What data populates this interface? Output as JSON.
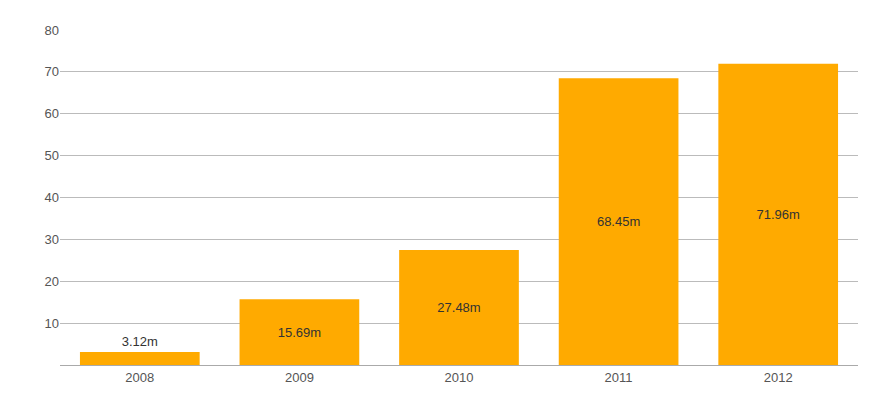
{
  "chart_data": {
    "type": "bar",
    "categories": [
      "2008",
      "2009",
      "2010",
      "2011",
      "2012"
    ],
    "values": [
      3.12,
      15.69,
      27.48,
      68.45,
      71.96
    ],
    "value_labels": [
      "3.12m",
      "15.69m",
      "27.48m",
      "68.45m",
      "71.96m"
    ],
    "data_labels": true,
    "color": "#FFAA00",
    "ylim": [
      0,
      80
    ],
    "yticks": [
      10,
      20,
      30,
      40,
      50,
      60,
      70,
      80
    ],
    "grid": true
  }
}
